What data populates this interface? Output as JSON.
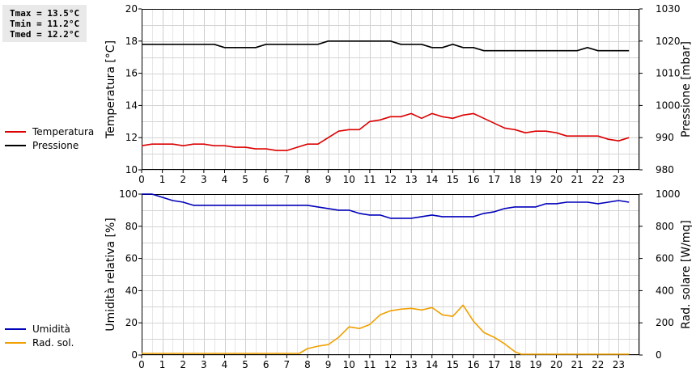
{
  "stats": {
    "tmax": "Tmax = 13.5°C",
    "tmin": "Tmin = 11.2°C",
    "tmed": "Tmed = 12.2°C"
  },
  "legend_top": [
    {
      "label": "Temperatura",
      "color": "#dd0000"
    },
    {
      "label": "Pressione",
      "color": "#000000"
    }
  ],
  "legend_bottom": [
    {
      "label": "Umidità",
      "color": "#0000bb"
    },
    {
      "label": "Rad. sol.",
      "color": "#f0a000"
    }
  ],
  "chart_data": [
    {
      "type": "line",
      "xlabel": "",
      "x_ticks": [
        0,
        1,
        2,
        3,
        4,
        5,
        6,
        7,
        8,
        9,
        10,
        11,
        12,
        13,
        14,
        15,
        16,
        17,
        18,
        19,
        20,
        21,
        22,
        23
      ],
      "xlim": [
        0,
        24
      ],
      "ylabel": "Temperatura [°C]",
      "ylim": [
        10,
        20
      ],
      "y_ticks": [
        10,
        12,
        14,
        16,
        18,
        20
      ],
      "y2label": "Pressione [mbar]",
      "y2lim": [
        980,
        1030
      ],
      "y2_ticks": [
        980,
        990,
        1000,
        1010,
        1020,
        1030
      ],
      "grid": true,
      "series": [
        {
          "name": "Temperatura",
          "axis": "left",
          "color": "#dd0000",
          "x": [
            0,
            0.5,
            1,
            1.5,
            2,
            2.5,
            3,
            3.5,
            4,
            4.5,
            5,
            5.5,
            6,
            6.5,
            7,
            7.5,
            8,
            8.5,
            9,
            9.5,
            10,
            10.5,
            11,
            11.5,
            12,
            12.5,
            13,
            13.5,
            14,
            14.5,
            15,
            15.5,
            16,
            16.5,
            17,
            17.5,
            18,
            18.5,
            19,
            19.5,
            20,
            20.5,
            21,
            21.5,
            22,
            22.5,
            23,
            23.5
          ],
          "values": [
            11.5,
            11.6,
            11.6,
            11.6,
            11.5,
            11.6,
            11.6,
            11.5,
            11.5,
            11.4,
            11.4,
            11.3,
            11.3,
            11.2,
            11.2,
            11.4,
            11.6,
            11.6,
            12.0,
            12.4,
            12.5,
            12.5,
            13.0,
            13.1,
            13.3,
            13.3,
            13.5,
            13.2,
            13.5,
            13.3,
            13.2,
            13.4,
            13.5,
            13.2,
            12.9,
            12.6,
            12.5,
            12.3,
            12.4,
            12.4,
            12.3,
            12.1,
            12.1,
            12.1,
            12.1,
            11.9,
            11.8,
            12.0
          ]
        },
        {
          "name": "Pressione",
          "axis": "right",
          "color": "#000000",
          "x": [
            0,
            0.5,
            1,
            1.5,
            2,
            2.5,
            3,
            3.5,
            4,
            4.5,
            5,
            5.5,
            6,
            6.5,
            7,
            7.5,
            8,
            8.5,
            9,
            9.5,
            10,
            10.5,
            11,
            11.5,
            12,
            12.5,
            13,
            13.5,
            14,
            14.5,
            15,
            15.5,
            16,
            16.5,
            17,
            17.5,
            18,
            18.5,
            19,
            19.5,
            20,
            20.5,
            21,
            21.5,
            22,
            22.5,
            23,
            23.5
          ],
          "values": [
            1019,
            1019,
            1019,
            1019,
            1019,
            1019,
            1019,
            1019,
            1018,
            1018,
            1018,
            1018,
            1019,
            1019,
            1019,
            1019,
            1019,
            1019,
            1020,
            1020,
            1020,
            1020,
            1020,
            1020,
            1020,
            1019,
            1019,
            1019,
            1018,
            1018,
            1019,
            1018,
            1018,
            1017,
            1017,
            1017,
            1017,
            1017,
            1017,
            1017,
            1017,
            1017,
            1017,
            1018,
            1017,
            1017,
            1017,
            1017
          ]
        }
      ]
    },
    {
      "type": "line",
      "xlabel": "",
      "x_ticks": [
        0,
        1,
        2,
        3,
        4,
        5,
        6,
        7,
        8,
        9,
        10,
        11,
        12,
        13,
        14,
        15,
        16,
        17,
        18,
        19,
        20,
        21,
        22,
        23
      ],
      "xlim": [
        0,
        24
      ],
      "ylabel": "Umidità relativa [%]",
      "ylim": [
        0,
        100
      ],
      "y_ticks": [
        0,
        20,
        40,
        60,
        80,
        100
      ],
      "y2label": "Rad. solare [W/mq]",
      "y2lim": [
        0,
        1000
      ],
      "y2_ticks": [
        0,
        200,
        400,
        600,
        800,
        1000
      ],
      "grid": true,
      "series": [
        {
          "name": "Umidità",
          "axis": "left",
          "color": "#0000bb",
          "x": [
            0,
            0.5,
            1,
            1.5,
            2,
            2.5,
            3,
            3.5,
            4,
            4.5,
            5,
            5.5,
            6,
            6.5,
            7,
            7.5,
            8,
            8.5,
            9,
            9.5,
            10,
            10.5,
            11,
            11.5,
            12,
            12.5,
            13,
            13.5,
            14,
            14.5,
            15,
            15.5,
            16,
            16.5,
            17,
            17.5,
            18,
            18.5,
            19,
            19.5,
            20,
            20.5,
            21,
            21.5,
            22,
            22.5,
            23,
            23.5
          ],
          "values": [
            100,
            100,
            98,
            96,
            95,
            93,
            93,
            93,
            93,
            93,
            93,
            93,
            93,
            93,
            93,
            93,
            93,
            92,
            91,
            90,
            90,
            88,
            87,
            87,
            85,
            85,
            85,
            86,
            87,
            86,
            86,
            86,
            86,
            88,
            89,
            91,
            92,
            92,
            92,
            94,
            94,
            95,
            95,
            95,
            94,
            95,
            96,
            95
          ]
        },
        {
          "name": "Rad. sol.",
          "axis": "right",
          "color": "#f0a000",
          "x": [
            0,
            1,
            2,
            3,
            4,
            5,
            6,
            7,
            7.6,
            8,
            8.5,
            9,
            9.5,
            10,
            10.5,
            11,
            11.5,
            12,
            12.5,
            13,
            13.5,
            14,
            14.5,
            15,
            15.5,
            16,
            16.5,
            17,
            17.5,
            18,
            18.3,
            18.5,
            19,
            20,
            21,
            22,
            23,
            23.5
          ],
          "values": [
            10,
            10,
            10,
            10,
            10,
            10,
            10,
            10,
            10,
            40,
            55,
            65,
            110,
            175,
            165,
            190,
            250,
            275,
            285,
            290,
            280,
            295,
            250,
            240,
            310,
            210,
            140,
            110,
            70,
            20,
            5,
            5,
            5,
            5,
            5,
            5,
            5,
            5
          ]
        }
      ]
    }
  ]
}
